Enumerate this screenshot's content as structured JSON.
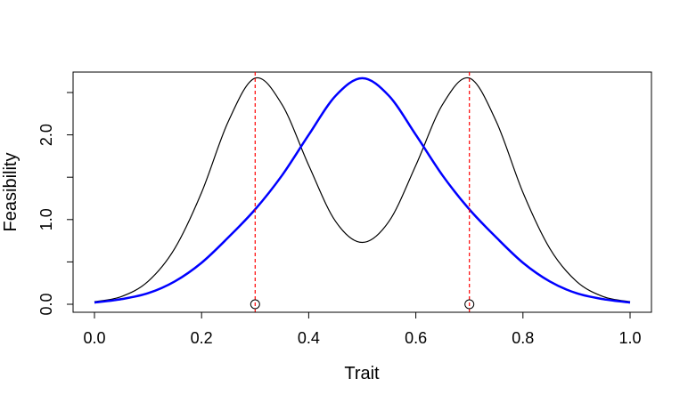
{
  "chart_data": {
    "type": "line",
    "title": "",
    "xlabel": "Trait",
    "ylabel": "Feasibility",
    "xlim": [
      0,
      1
    ],
    "ylim": [
      0,
      2.7
    ],
    "grid": false,
    "x_ticks": [
      {
        "value": 0.0,
        "label": "0.0"
      },
      {
        "value": 0.2,
        "label": "0.2"
      },
      {
        "value": 0.4,
        "label": "0.4"
      },
      {
        "value": 0.6,
        "label": "0.6"
      },
      {
        "value": 0.8,
        "label": "0.8"
      },
      {
        "value": 1.0,
        "label": "1.0"
      }
    ],
    "y_ticks": [
      {
        "value": 0.0,
        "label": "0.0"
      },
      {
        "value": 0.5,
        "label": ""
      },
      {
        "value": 1.0,
        "label": "1.0"
      },
      {
        "value": 1.5,
        "label": ""
      },
      {
        "value": 2.0,
        "label": "2.0"
      },
      {
        "value": 2.5,
        "label": ""
      }
    ],
    "series": [
      {
        "color": "#000000",
        "style": "solid",
        "x": [
          0.0,
          0.05,
          0.1,
          0.15,
          0.2,
          0.25,
          0.3,
          0.35,
          0.4,
          0.45,
          0.5,
          0.55,
          0.6,
          0.65,
          0.7,
          0.75,
          0.8,
          0.85,
          0.9,
          0.95,
          1.0
        ],
        "y": [
          0.03,
          0.09,
          0.27,
          0.66,
          1.32,
          2.16,
          2.67,
          2.36,
          1.64,
          0.98,
          0.73,
          0.98,
          1.64,
          2.36,
          2.67,
          2.16,
          1.32,
          0.66,
          0.27,
          0.09,
          0.03
        ]
      },
      {
        "color": "#0000ff",
        "style": "solid",
        "x": [
          0.0,
          0.05,
          0.1,
          0.15,
          0.2,
          0.25,
          0.3,
          0.35,
          0.4,
          0.45,
          0.5,
          0.55,
          0.6,
          0.65,
          0.7,
          0.75,
          0.8,
          0.85,
          0.9,
          0.95,
          1.0
        ],
        "y": [
          0.02,
          0.06,
          0.13,
          0.27,
          0.49,
          0.79,
          1.12,
          1.52,
          2.0,
          2.46,
          2.67,
          2.46,
          2.0,
          1.52,
          1.12,
          0.79,
          0.49,
          0.27,
          0.13,
          0.06,
          0.02
        ]
      }
    ],
    "vlines": [
      {
        "x": 0.3,
        "color": "#ff0000",
        "style": "dashed"
      },
      {
        "x": 0.7,
        "color": "#ff0000",
        "style": "dashed"
      }
    ],
    "points": [
      {
        "x": 0.3,
        "y": 0.0,
        "shape": "open-circle"
      },
      {
        "x": 0.7,
        "y": 0.0,
        "shape": "open-circle"
      }
    ]
  }
}
